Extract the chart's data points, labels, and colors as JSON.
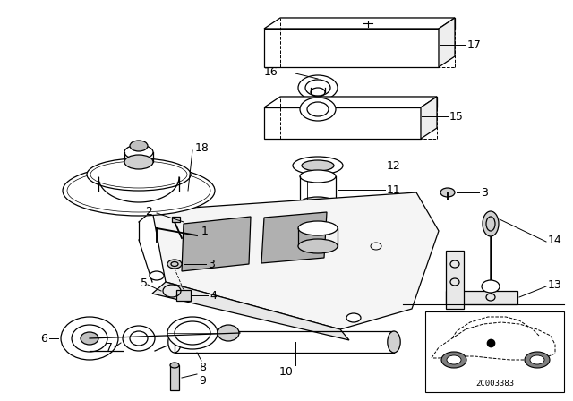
{
  "bg_color": "#ffffff",
  "line_color": "#000000",
  "fig_width": 6.4,
  "fig_height": 4.48,
  "dpi": 100,
  "diagram_code_text": "2C003383"
}
